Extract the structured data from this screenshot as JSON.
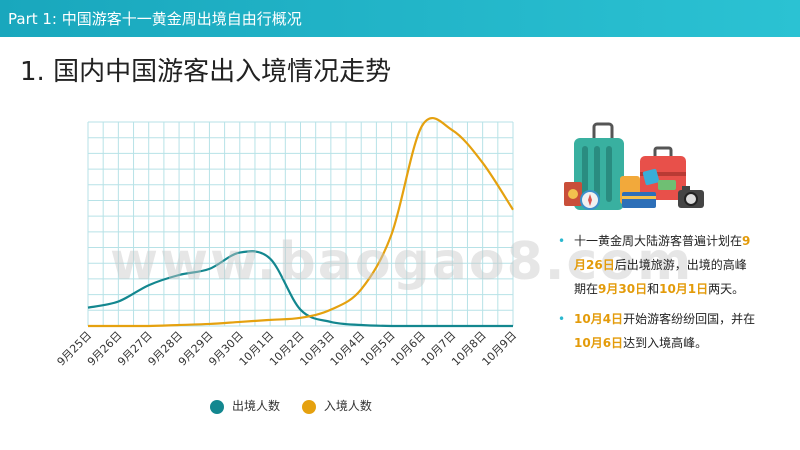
{
  "header": {
    "title": "Part 1: 中国游客十一黄金周出境自由行概况"
  },
  "page": {
    "title": "1. 国内中国游客出入境情况走势"
  },
  "watermark": "www.baogao8.com",
  "colors": {
    "accent": "#1fb3c8",
    "outbound": "#13878f",
    "inbound": "#e5a10f",
    "grid": "#b7e2e7",
    "highlight": "#e39b0a"
  },
  "illustration": {
    "icon": "travel-luggage-illustration"
  },
  "bullets": [
    {
      "parts": [
        {
          "text": "十一黄金周大陆游客普遍计划在",
          "hl": false
        },
        {
          "text": "9月26日",
          "hl": true
        },
        {
          "text": "后出境旅游，出境的高峰期在",
          "hl": false
        },
        {
          "text": "9月30日",
          "hl": true
        },
        {
          "text": "和",
          "hl": false
        },
        {
          "text": "10月1日",
          "hl": true
        },
        {
          "text": "两天。",
          "hl": false
        }
      ]
    },
    {
      "parts": [
        {
          "text": "10月4日",
          "hl": true
        },
        {
          "text": "开始游客纷纷回国，并在",
          "hl": false
        },
        {
          "text": "10月6日",
          "hl": true
        },
        {
          "text": "达到入境高峰。",
          "hl": false
        }
      ]
    }
  ],
  "chart_data": {
    "type": "line",
    "categories": [
      "9月25日",
      "9月26日",
      "9月27日",
      "9月28日",
      "9月29日",
      "9月30日",
      "10月1日",
      "10月2日",
      "10月3日",
      "10月4日",
      "10月5日",
      "10月6日",
      "10月7日",
      "10月8日",
      "10月9日"
    ],
    "ylim": [
      0,
      100
    ],
    "grid": true,
    "legend_position": "bottom",
    "series": [
      {
        "name": "出境人数",
        "color": "#13878f",
        "values": [
          9,
          12,
          20,
          25,
          28,
          36,
          33,
          8,
          2,
          0.5,
          0,
          0,
          0,
          0,
          0
        ]
      },
      {
        "name": "入境人数",
        "color": "#e5a10f",
        "values": [
          0,
          0,
          0,
          0.5,
          1,
          2,
          3,
          4,
          8,
          18,
          45,
          98,
          96,
          80,
          57
        ]
      }
    ]
  }
}
